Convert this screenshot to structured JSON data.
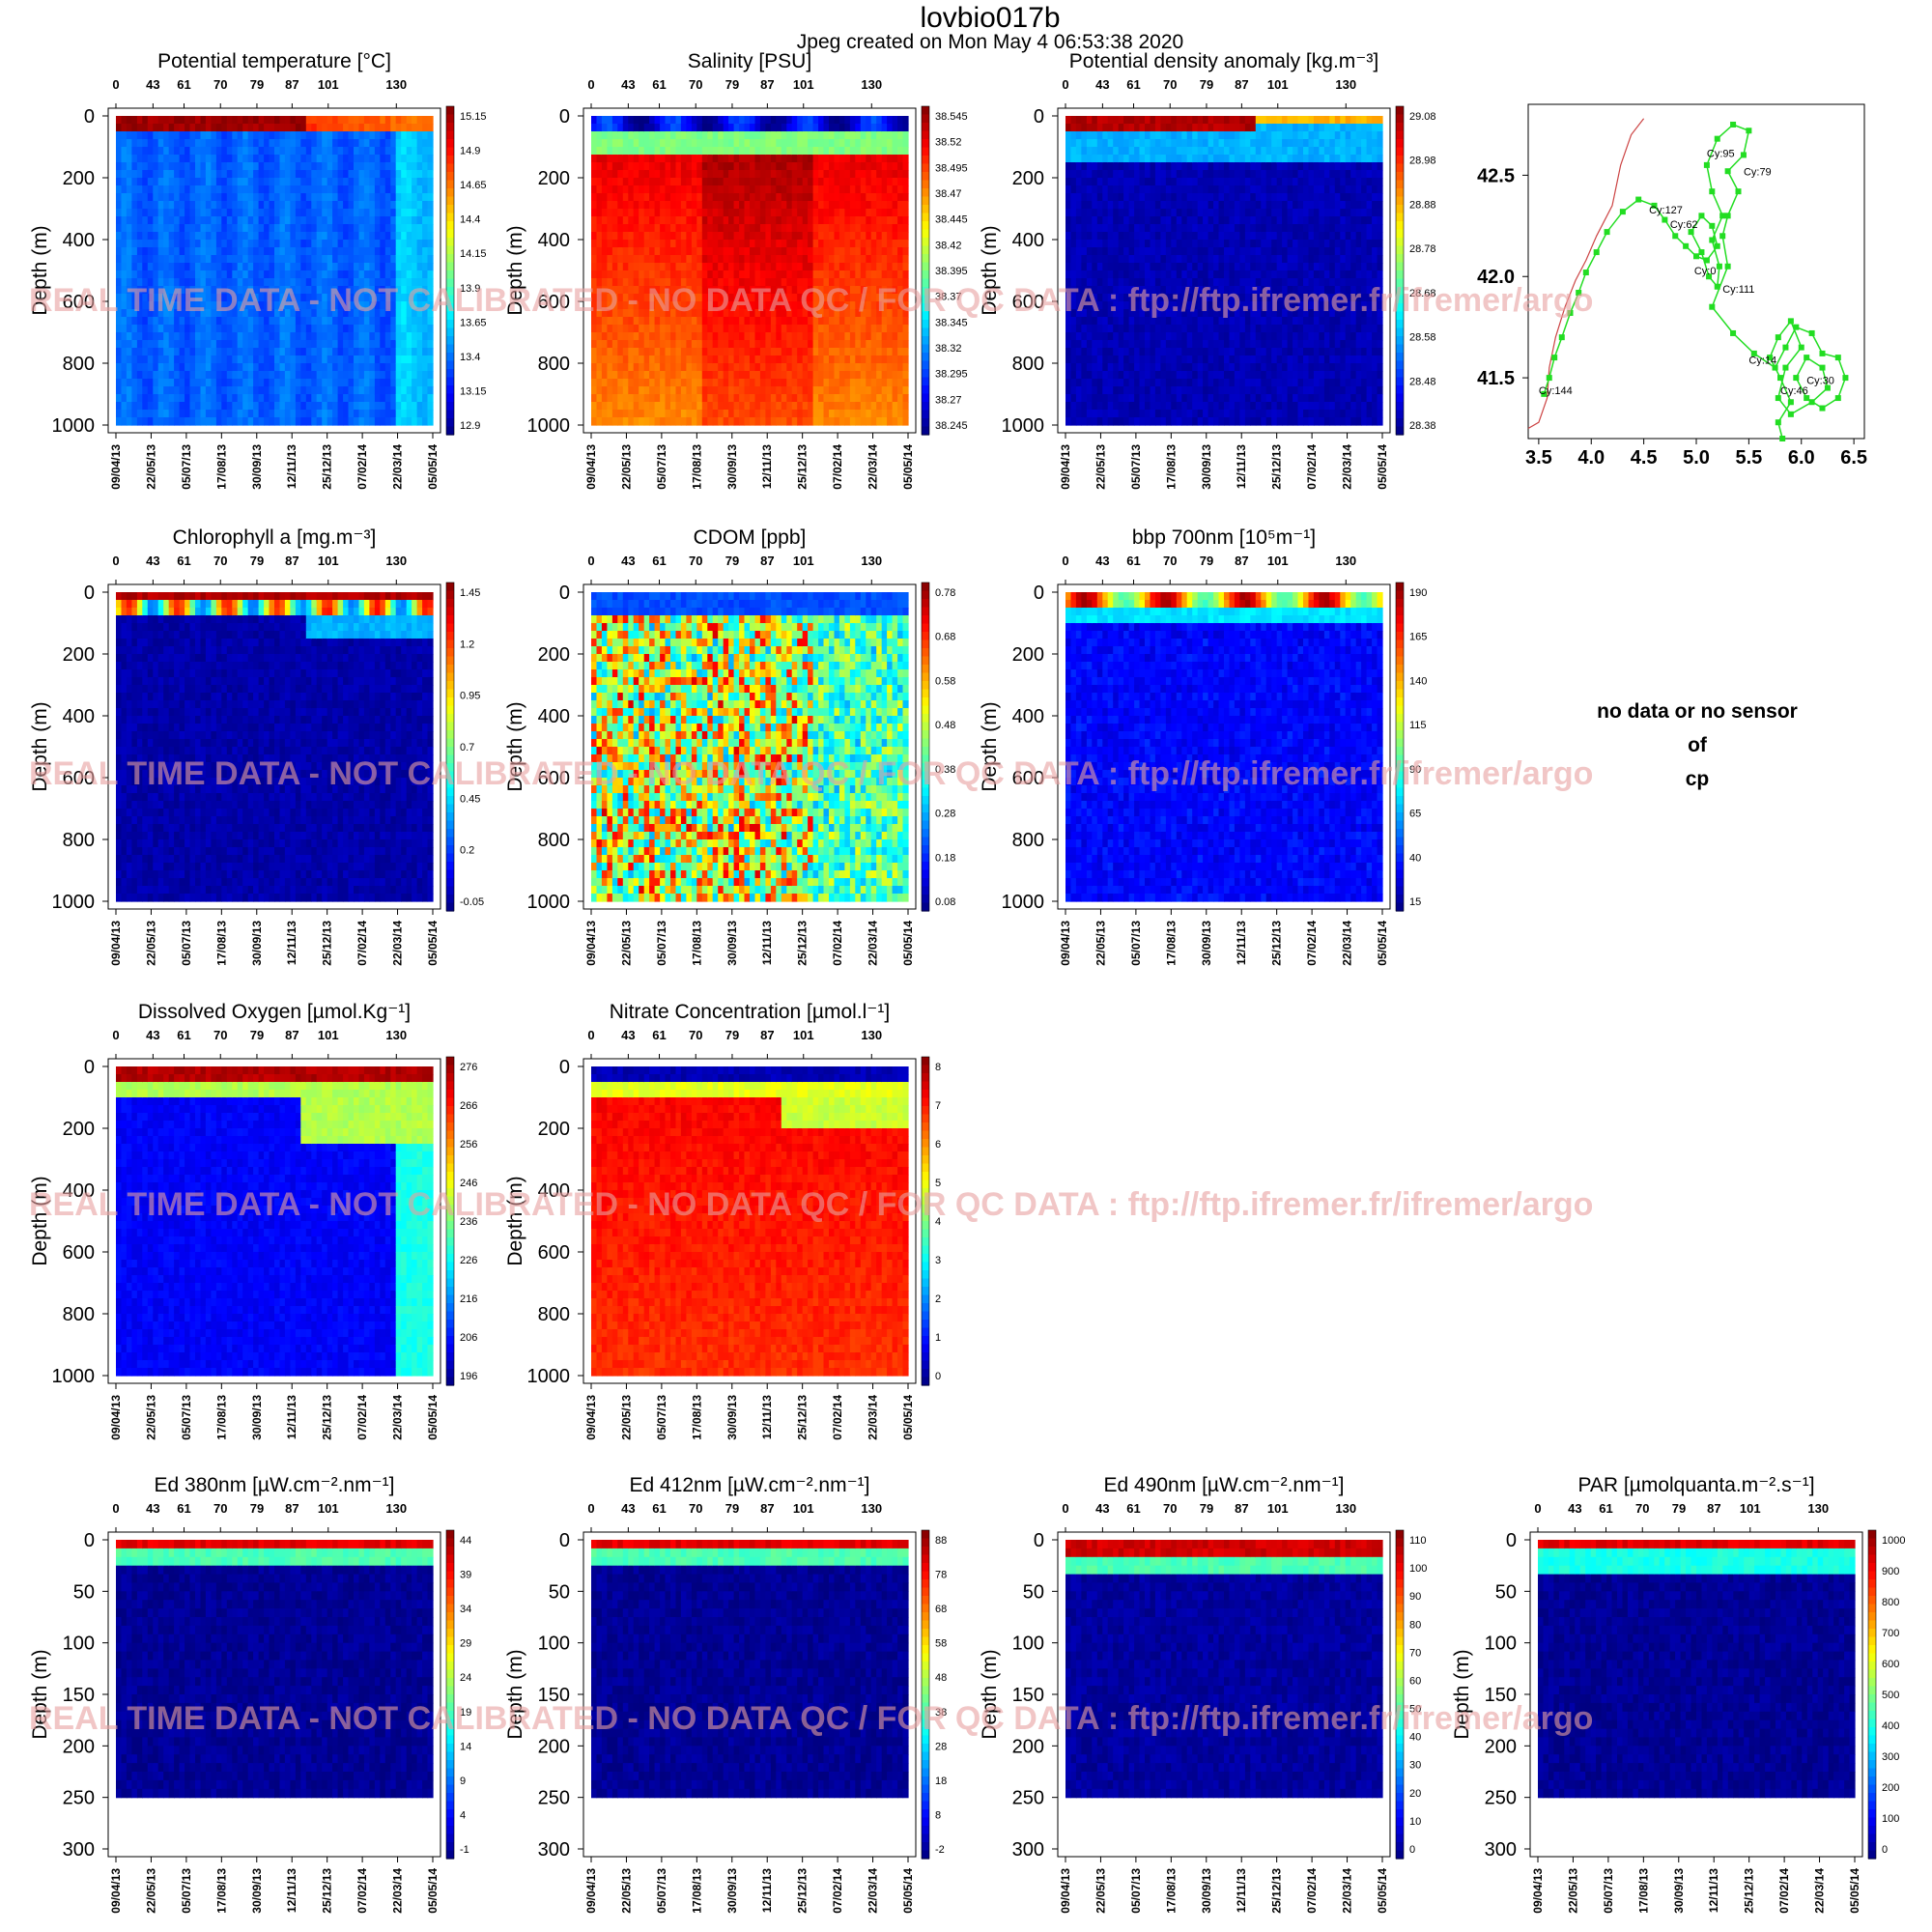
{
  "header": {
    "float_name": "lovbio017b",
    "created": "Jpeg created on  Mon May  4 06:53:38 2020"
  },
  "watermark": "REAL TIME DATA - NOT CALIBRATED - NO DATA QC  /  FOR QC DATA : ftp://ftp.ifremer.fr/ifremer/argo",
  "colors": {
    "watermark": "#e8a0a0",
    "track": "#22dd22",
    "coast": "#cc4444",
    "jet_low": "#00008f",
    "jet_high": "#800000"
  },
  "missing_panel": {
    "lines": [
      "no data or no sensor",
      "of",
      "cp"
    ]
  },
  "chart_data": [
    {
      "id": "temp",
      "type": "heatmap",
      "title": "Potential temperature [°C]",
      "ylabel": "Depth (m)",
      "ylim": [
        1000,
        0
      ],
      "yticks": [
        0,
        200,
        400,
        600,
        800,
        1000
      ],
      "cycles": [
        "0",
        "43",
        "61",
        "70",
        "79",
        "87",
        "101",
        "130"
      ],
      "dates": [
        "09/04/13",
        "22/05/13",
        "05/07/13",
        "17/08/13",
        "30/09/13",
        "12/11/13",
        "25/12/13",
        "07/02/14",
        "22/03/14",
        "05/05/14"
      ],
      "colorbar": [
        "15.15",
        "14.9",
        "14.65",
        "14.4",
        "14.15",
        "13.9",
        "13.65",
        "13.4",
        "13.15",
        "12.9"
      ]
    },
    {
      "id": "sal",
      "type": "heatmap",
      "title": "Salinity [PSU]",
      "ylabel": "Depth (m)",
      "ylim": [
        1000,
        0
      ],
      "yticks": [
        0,
        200,
        400,
        600,
        800,
        1000
      ],
      "cycles": [
        "0",
        "43",
        "61",
        "70",
        "79",
        "87",
        "101",
        "130"
      ],
      "dates": [
        "09/04/13",
        "22/05/13",
        "05/07/13",
        "17/08/13",
        "30/09/13",
        "12/11/13",
        "25/12/13",
        "07/02/14",
        "22/03/14",
        "05/05/14"
      ],
      "colorbar": [
        "38.545",
        "38.52",
        "38.495",
        "38.47",
        "38.445",
        "38.42",
        "38.395",
        "38.37",
        "38.345",
        "38.32",
        "38.295",
        "38.27",
        "38.245"
      ]
    },
    {
      "id": "dens",
      "type": "heatmap",
      "title": "Potential density anomaly [kg.m⁻³]",
      "ylabel": "Depth (m)",
      "ylim": [
        1000,
        0
      ],
      "yticks": [
        0,
        200,
        400,
        600,
        800,
        1000
      ],
      "cycles": [
        "0",
        "43",
        "61",
        "70",
        "79",
        "87",
        "101",
        "130"
      ],
      "dates": [
        "09/04/13",
        "22/05/13",
        "05/07/13",
        "17/08/13",
        "30/09/13",
        "12/11/13",
        "25/12/13",
        "07/02/14",
        "22/03/14",
        "05/05/14"
      ],
      "colorbar": [
        "29.08",
        "28.98",
        "28.88",
        "28.78",
        "28.68",
        "28.58",
        "28.48",
        "28.38"
      ]
    },
    {
      "id": "chla",
      "type": "heatmap",
      "title": "Chlorophyll a [mg.m⁻³]",
      "ylabel": "Depth (m)",
      "ylim": [
        1000,
        0
      ],
      "yticks": [
        0,
        200,
        400,
        600,
        800,
        1000
      ],
      "cycles": [
        "0",
        "43",
        "61",
        "70",
        "79",
        "87",
        "101",
        "130"
      ],
      "dates": [
        "09/04/13",
        "22/05/13",
        "05/07/13",
        "17/08/13",
        "30/09/13",
        "12/11/13",
        "25/12/13",
        "07/02/14",
        "22/03/14",
        "05/05/14"
      ],
      "colorbar": [
        "1.45",
        "1.2",
        "0.95",
        "0.7",
        "0.45",
        "0.2",
        "-0.05"
      ]
    },
    {
      "id": "cdom",
      "type": "heatmap",
      "title": "CDOM  [ppb]",
      "ylabel": "Depth (m)",
      "ylim": [
        1000,
        0
      ],
      "yticks": [
        0,
        200,
        400,
        600,
        800,
        1000
      ],
      "cycles": [
        "0",
        "43",
        "61",
        "70",
        "79",
        "87",
        "101",
        "130"
      ],
      "dates": [
        "09/04/13",
        "22/05/13",
        "05/07/13",
        "17/08/13",
        "30/09/13",
        "12/11/13",
        "25/12/13",
        "07/02/14",
        "22/03/14",
        "05/05/14"
      ],
      "colorbar": [
        "0.78",
        "0.68",
        "0.58",
        "0.48",
        "0.38",
        "0.28",
        "0.18",
        "0.08"
      ]
    },
    {
      "id": "bbp",
      "type": "heatmap",
      "title": "bbp 700nm [10⁵m⁻¹]",
      "ylabel": "Depth (m)",
      "ylim": [
        1000,
        0
      ],
      "yticks": [
        0,
        200,
        400,
        600,
        800,
        1000
      ],
      "cycles": [
        "0",
        "43",
        "61",
        "70",
        "79",
        "87",
        "101",
        "130"
      ],
      "dates": [
        "09/04/13",
        "22/05/13",
        "05/07/13",
        "17/08/13",
        "30/09/13",
        "12/11/13",
        "25/12/13",
        "07/02/14",
        "22/03/14",
        "05/05/14"
      ],
      "colorbar": [
        "190",
        "165",
        "140",
        "115",
        "90",
        "65",
        "40",
        "15"
      ]
    },
    {
      "id": "doxy",
      "type": "heatmap",
      "title": "Dissolved Oxygen [µmol.Kg⁻¹]",
      "ylabel": "Depth (m)",
      "ylim": [
        1000,
        0
      ],
      "yticks": [
        0,
        200,
        400,
        600,
        800,
        1000
      ],
      "cycles": [
        "0",
        "43",
        "61",
        "70",
        "79",
        "87",
        "101",
        "130"
      ],
      "dates": [
        "09/04/13",
        "22/05/13",
        "05/07/13",
        "17/08/13",
        "30/09/13",
        "12/11/13",
        "25/12/13",
        "07/02/14",
        "22/03/14",
        "05/05/14"
      ],
      "colorbar": [
        "276",
        "266",
        "256",
        "246",
        "236",
        "226",
        "216",
        "206",
        "196"
      ]
    },
    {
      "id": "nitr",
      "type": "heatmap",
      "title": "Nitrate Concentration [µmol.l⁻¹]",
      "ylabel": "Depth (m)",
      "ylim": [
        1000,
        0
      ],
      "yticks": [
        0,
        200,
        400,
        600,
        800,
        1000
      ],
      "cycles": [
        "0",
        "43",
        "61",
        "70",
        "79",
        "87",
        "101",
        "130"
      ],
      "dates": [
        "09/04/13",
        "22/05/13",
        "05/07/13",
        "17/08/13",
        "30/09/13",
        "12/11/13",
        "25/12/13",
        "07/02/14",
        "22/03/14",
        "05/05/14"
      ],
      "colorbar": [
        "8",
        "7",
        "6",
        "5",
        "4",
        "3",
        "2",
        "1",
        "0"
      ]
    },
    {
      "id": "ed380",
      "type": "heatmap",
      "title": "Ed 380nm [µW.cm⁻².nm⁻¹]",
      "ylabel": "Depth (m)",
      "ylim": [
        300,
        0
      ],
      "yticks": [
        0,
        50,
        100,
        150,
        200,
        250,
        300
      ],
      "cycles": [
        "0",
        "43",
        "61",
        "70",
        "79",
        "87",
        "101",
        "130"
      ],
      "dates": [
        "09/04/13",
        "22/05/13",
        "05/07/13",
        "17/08/13",
        "30/09/13",
        "12/11/13",
        "25/12/13",
        "07/02/14",
        "22/03/14",
        "05/05/14"
      ],
      "colorbar": [
        "44",
        "39",
        "34",
        "29",
        "24",
        "19",
        "14",
        "9",
        "4",
        "-1"
      ]
    },
    {
      "id": "ed412",
      "type": "heatmap",
      "title": "Ed 412nm [µW.cm⁻².nm⁻¹]",
      "ylabel": "Depth (m)",
      "ylim": [
        300,
        0
      ],
      "yticks": [
        0,
        50,
        100,
        150,
        200,
        250,
        300
      ],
      "cycles": [
        "0",
        "43",
        "61",
        "70",
        "79",
        "87",
        "101",
        "130"
      ],
      "dates": [
        "09/04/13",
        "22/05/13",
        "05/07/13",
        "17/08/13",
        "30/09/13",
        "12/11/13",
        "25/12/13",
        "07/02/14",
        "22/03/14",
        "05/05/14"
      ],
      "colorbar": [
        "88",
        "78",
        "68",
        "58",
        "48",
        "38",
        "28",
        "18",
        "8",
        "-2"
      ]
    },
    {
      "id": "ed490",
      "type": "heatmap",
      "title": "Ed 490nm [µW.cm⁻².nm⁻¹]",
      "ylabel": "Depth (m)",
      "ylim": [
        300,
        0
      ],
      "yticks": [
        0,
        50,
        100,
        150,
        200,
        250,
        300
      ],
      "cycles": [
        "0",
        "43",
        "61",
        "70",
        "79",
        "87",
        "101",
        "130"
      ],
      "dates": [
        "09/04/13",
        "22/05/13",
        "05/07/13",
        "17/08/13",
        "30/09/13",
        "12/11/13",
        "25/12/13",
        "07/02/14",
        "22/03/14",
        "05/05/14"
      ],
      "colorbar": [
        "110",
        "100",
        "90",
        "80",
        "70",
        "60",
        "50",
        "40",
        "30",
        "20",
        "10",
        "0"
      ]
    },
    {
      "id": "par",
      "type": "heatmap",
      "title": "PAR [µmolquanta.m⁻².s⁻¹]",
      "ylabel": "Depth (m)",
      "ylim": [
        300,
        0
      ],
      "yticks": [
        0,
        50,
        100,
        150,
        200,
        250,
        300
      ],
      "cycles": [
        "0",
        "43",
        "61",
        "70",
        "79",
        "87",
        "101",
        "130"
      ],
      "dates": [
        "09/04/13",
        "22/05/13",
        "05/07/13",
        "17/08/13",
        "30/09/13",
        "12/11/13",
        "25/12/13",
        "07/02/14",
        "22/03/14",
        "05/05/14"
      ],
      "colorbar": [
        "1000",
        "900",
        "800",
        "700",
        "600",
        "500",
        "400",
        "300",
        "200",
        "100",
        "0"
      ]
    },
    {
      "id": "map",
      "type": "scatter",
      "title": "",
      "xlim": [
        3.4,
        6.6
      ],
      "ylim": [
        41.2,
        42.85
      ],
      "xticks": [
        "3.5",
        "4.0",
        "4.5",
        "5.0",
        "5.5",
        "6.0",
        "6.5"
      ],
      "yticks": [
        "41.5",
        "42.0",
        "42.5"
      ],
      "labels": [
        {
          "text": "Cy:95",
          "lon": 5.1,
          "lat": 42.59
        },
        {
          "text": "Cy:79",
          "lon": 5.45,
          "lat": 42.5
        },
        {
          "text": "Cy:127",
          "lon": 4.55,
          "lat": 42.31
        },
        {
          "text": "Cy:62",
          "lon": 4.75,
          "lat": 42.24
        },
        {
          "text": "Cy:0",
          "lon": 4.98,
          "lat": 42.01
        },
        {
          "text": "Cy:111",
          "lon": 5.25,
          "lat": 41.92
        },
        {
          "text": "Cy:14",
          "lon": 5.5,
          "lat": 41.57
        },
        {
          "text": "Cy:46",
          "lon": 5.8,
          "lat": 41.42
        },
        {
          "text": "Cy:30",
          "lon": 6.05,
          "lat": 41.47
        },
        {
          "text": "Cy:144",
          "lon": 3.5,
          "lat": 41.42
        }
      ],
      "track": [
        [
          3.55,
          41.42
        ],
        [
          3.6,
          41.5
        ],
        [
          3.65,
          41.6
        ],
        [
          3.72,
          41.7
        ],
        [
          3.8,
          41.82
        ],
        [
          3.88,
          41.92
        ],
        [
          3.95,
          42.02
        ],
        [
          4.05,
          42.12
        ],
        [
          4.15,
          42.22
        ],
        [
          4.3,
          42.32
        ],
        [
          4.45,
          42.38
        ],
        [
          4.6,
          42.35
        ],
        [
          4.7,
          42.28
        ],
        [
          4.8,
          42.2
        ],
        [
          4.9,
          42.15
        ],
        [
          5.0,
          42.1
        ],
        [
          5.1,
          42.08
        ],
        [
          5.2,
          42.15
        ],
        [
          5.15,
          42.25
        ],
        [
          5.05,
          42.3
        ],
        [
          4.95,
          42.22
        ],
        [
          5.05,
          42.12
        ],
        [
          5.12,
          42.0
        ],
        [
          5.2,
          41.95
        ],
        [
          5.22,
          42.05
        ],
        [
          5.15,
          42.18
        ],
        [
          5.25,
          42.3
        ],
        [
          5.15,
          42.42
        ],
        [
          5.1,
          42.55
        ],
        [
          5.2,
          42.68
        ],
        [
          5.35,
          42.75
        ],
        [
          5.5,
          42.72
        ],
        [
          5.45,
          42.6
        ],
        [
          5.3,
          42.52
        ],
        [
          5.4,
          42.42
        ],
        [
          5.3,
          42.3
        ],
        [
          5.25,
          42.2
        ],
        [
          5.3,
          42.05
        ],
        [
          5.15,
          41.85
        ],
        [
          5.35,
          41.72
        ],
        [
          5.55,
          41.62
        ],
        [
          5.75,
          41.55
        ],
        [
          5.85,
          41.65
        ],
        [
          5.95,
          41.75
        ],
        [
          6.1,
          41.72
        ],
        [
          6.2,
          41.62
        ],
        [
          6.35,
          41.6
        ],
        [
          6.42,
          41.5
        ],
        [
          6.35,
          41.4
        ],
        [
          6.2,
          41.35
        ],
        [
          6.05,
          41.4
        ],
        [
          5.95,
          41.5
        ],
        [
          6.05,
          41.6
        ],
        [
          6.2,
          41.55
        ],
        [
          6.25,
          41.45
        ],
        [
          6.1,
          41.38
        ],
        [
          5.9,
          41.32
        ],
        [
          5.78,
          41.4
        ],
        [
          5.85,
          41.55
        ],
        [
          6.0,
          41.65
        ],
        [
          5.9,
          41.78
        ],
        [
          5.78,
          41.7
        ],
        [
          5.7,
          41.6
        ],
        [
          5.8,
          41.5
        ],
        [
          5.9,
          41.38
        ],
        [
          5.78,
          41.28
        ],
        [
          5.82,
          41.2
        ]
      ],
      "coast": [
        [
          3.4,
          41.25
        ],
        [
          3.5,
          41.28
        ],
        [
          3.58,
          41.4
        ],
        [
          3.6,
          41.55
        ],
        [
          3.66,
          41.7
        ],
        [
          3.75,
          41.85
        ],
        [
          3.85,
          41.98
        ],
        [
          3.95,
          42.08
        ],
        [
          4.05,
          42.2
        ],
        [
          4.2,
          42.35
        ],
        [
          4.28,
          42.55
        ],
        [
          4.38,
          42.7
        ],
        [
          4.5,
          42.78
        ]
      ]
    }
  ]
}
